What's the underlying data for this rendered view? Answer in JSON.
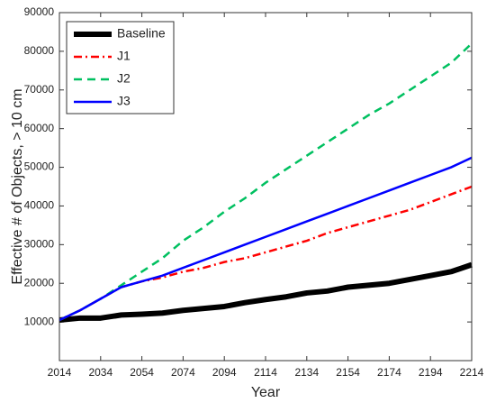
{
  "chart_data": {
    "type": "line",
    "x_label": "Year",
    "y_label": "Effective # of Objects, > 10 cm",
    "x": [
      2014,
      2024,
      2034,
      2044,
      2054,
      2064,
      2074,
      2084,
      2094,
      2104,
      2114,
      2124,
      2134,
      2144,
      2154,
      2164,
      2174,
      2184,
      2194,
      2204,
      2214
    ],
    "series": [
      {
        "name": "Baseline",
        "color": "#000000",
        "linestyle": "solid",
        "width": 6,
        "values": [
          10500,
          11000,
          11000,
          11800,
          12000,
          12300,
          13000,
          13500,
          14000,
          15000,
          15800,
          16500,
          17500,
          18000,
          19000,
          19500,
          20000,
          21000,
          22000,
          23000,
          24800
        ]
      },
      {
        "name": "J1",
        "color": "#ff0000",
        "linestyle": "dashdot",
        "width": 2.5,
        "values": [
          10500,
          13000,
          16000,
          19000,
          20500,
          21500,
          23000,
          24000,
          25500,
          26500,
          28000,
          29500,
          31000,
          33000,
          34500,
          36000,
          37500,
          39000,
          41000,
          43000,
          45000
        ]
      },
      {
        "name": "J2",
        "color": "#00c060",
        "linestyle": "dashed",
        "width": 2.5,
        "values": [
          10500,
          13000,
          16000,
          19500,
          23000,
          26500,
          31000,
          34500,
          38500,
          42000,
          46000,
          49500,
          53000,
          56500,
          60000,
          63500,
          66500,
          70000,
          73500,
          77000,
          82000
        ]
      },
      {
        "name": "J3",
        "color": "#0000ff",
        "linestyle": "solid",
        "width": 2.5,
        "values": [
          10500,
          13000,
          16000,
          19000,
          20500,
          22000,
          24000,
          26000,
          28000,
          30000,
          32000,
          34000,
          36000,
          38000,
          40000,
          42000,
          44000,
          46000,
          48000,
          50000,
          52500
        ]
      }
    ],
    "xlim": [
      2014,
      2214
    ],
    "xticks": [
      2014,
      2034,
      2054,
      2074,
      2094,
      2114,
      2134,
      2154,
      2174,
      2194,
      2214
    ],
    "ylim": [
      0,
      90000
    ],
    "yticks": [
      10000,
      20000,
      30000,
      40000,
      50000,
      60000,
      70000,
      80000,
      90000
    ],
    "legend": "upper left"
  }
}
